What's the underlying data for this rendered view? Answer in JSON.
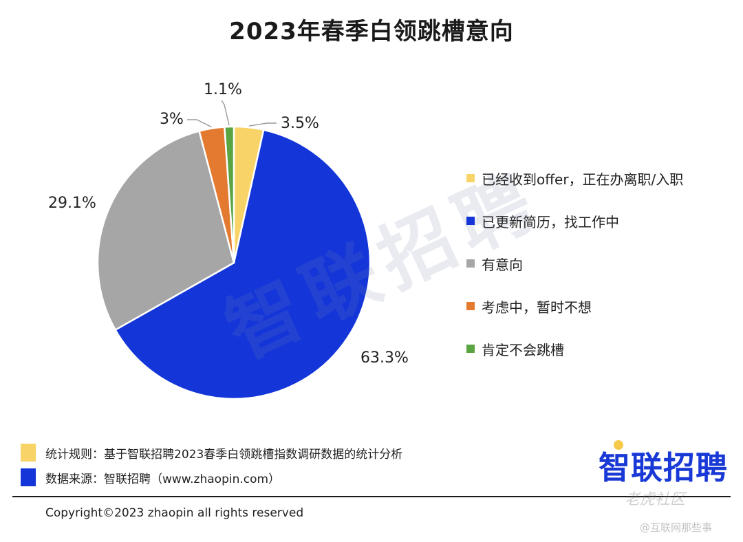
{
  "chart_data": {
    "type": "pie",
    "title": "2023年春季白领跳槽意向",
    "categories": [
      "已经收到offer，正在办离职/入职",
      "已更新简历，找工作中",
      "有意向",
      "考虑中，暂时不想",
      "肯定不会跳槽"
    ],
    "values": [
      3.5,
      63.3,
      29.1,
      3,
      1.1
    ],
    "labels": [
      "3.5%",
      "63.3%",
      "29.1%",
      "3%",
      "1.1%"
    ],
    "colors": [
      "#f8d468",
      "#1436d9",
      "#a6a6a6",
      "#e37a30",
      "#5aa441"
    ],
    "legend_position": "right"
  },
  "watermark": "智联招聘",
  "notes": [
    {
      "text": "统计规则：基于智联招聘2023春季白领跳槽指数调研数据的统计分析",
      "color": "#f8d468"
    },
    {
      "text": "数据来源：智联招聘（www.zhaopin.com）",
      "color": "#1436d9"
    }
  ],
  "logo": "智联招聘",
  "copyright": "Copyright©2023 zhaopin all rights reserved",
  "corner_watermark_1": "老虎社区",
  "corner_watermark_2": "@互联网那些事"
}
